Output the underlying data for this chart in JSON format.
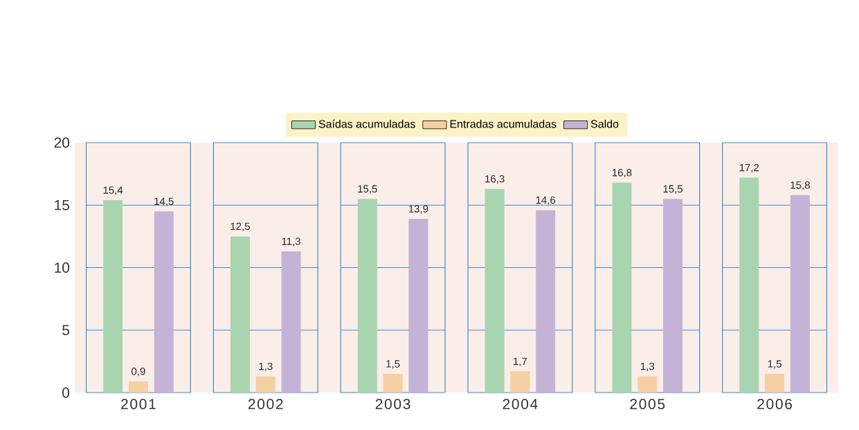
{
  "chart_data": {
    "type": "bar",
    "categories": [
      "2001",
      "2002",
      "2003",
      "2004",
      "2005",
      "2006"
    ],
    "series": [
      {
        "name": "Saídas acumuladas",
        "color": "#a8d5b0",
        "values": [
          15.4,
          12.5,
          15.5,
          16.3,
          16.8,
          17.2
        ],
        "value_labels": [
          "15,4",
          "12,5",
          "15,5",
          "16,3",
          "16,8",
          "17,2"
        ]
      },
      {
        "name": "Entradas acumuladas",
        "color": "#f6cfa3",
        "values": [
          0.9,
          1.3,
          1.5,
          1.7,
          1.3,
          1.5
        ],
        "value_labels": [
          "0,9",
          "1,3",
          "1,5",
          "1,7",
          "1,3",
          "1,5"
        ]
      },
      {
        "name": "Saldo",
        "color": "#c4b3d6",
        "values": [
          14.5,
          11.3,
          13.9,
          14.6,
          15.5,
          15.8
        ],
        "value_labels": [
          "14,5",
          "11,3",
          "13,9",
          "14,6",
          "15,5",
          "15,8"
        ]
      }
    ],
    "ylim": [
      0,
      20
    ],
    "yticks": [
      0,
      5,
      10,
      15,
      20
    ],
    "grid": "y",
    "legend": "top"
  }
}
